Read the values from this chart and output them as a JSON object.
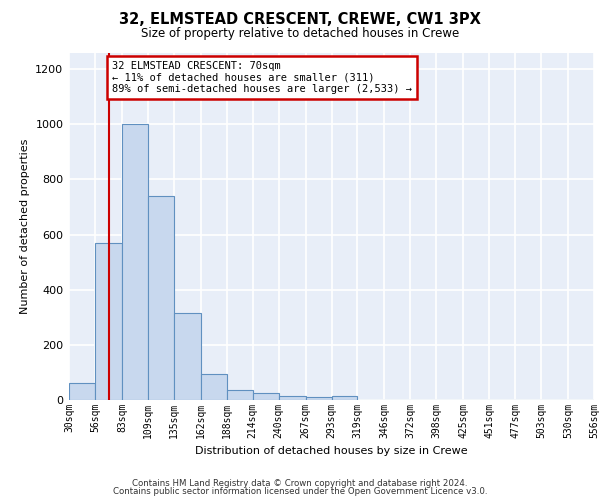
{
  "title1": "32, ELMSTEAD CRESCENT, CREWE, CW1 3PX",
  "title2": "Size of property relative to detached houses in Crewe",
  "xlabel": "Distribution of detached houses by size in Crewe",
  "ylabel": "Number of detached properties",
  "footer1": "Contains HM Land Registry data © Crown copyright and database right 2024.",
  "footer2": "Contains public sector information licensed under the Open Government Licence v3.0.",
  "annotation_title": "32 ELMSTEAD CRESCENT: 70sqm",
  "annotation_line1": "← 11% of detached houses are smaller (311)",
  "annotation_line2": "89% of semi-detached houses are larger (2,533) →",
  "property_size": 70,
  "bar_color": "#c8d8ee",
  "bar_edge_color": "#6090c0",
  "vline_color": "#cc0000",
  "annotation_box_color": "#cc0000",
  "ylim": [
    0,
    1260
  ],
  "yticks": [
    0,
    200,
    400,
    600,
    800,
    1000,
    1200
  ],
  "bin_edges": [
    30,
    56,
    83,
    109,
    135,
    162,
    188,
    214,
    240,
    267,
    293,
    319,
    346,
    372,
    398,
    425,
    451,
    477,
    503,
    530,
    556
  ],
  "bar_heights": [
    60,
    570,
    1000,
    740,
    315,
    95,
    35,
    25,
    15,
    10,
    15,
    0,
    0,
    0,
    0,
    0,
    0,
    0,
    0,
    0
  ],
  "background_color": "#e8eef8",
  "grid_color": "#ffffff",
  "fig_bg": "#ffffff"
}
